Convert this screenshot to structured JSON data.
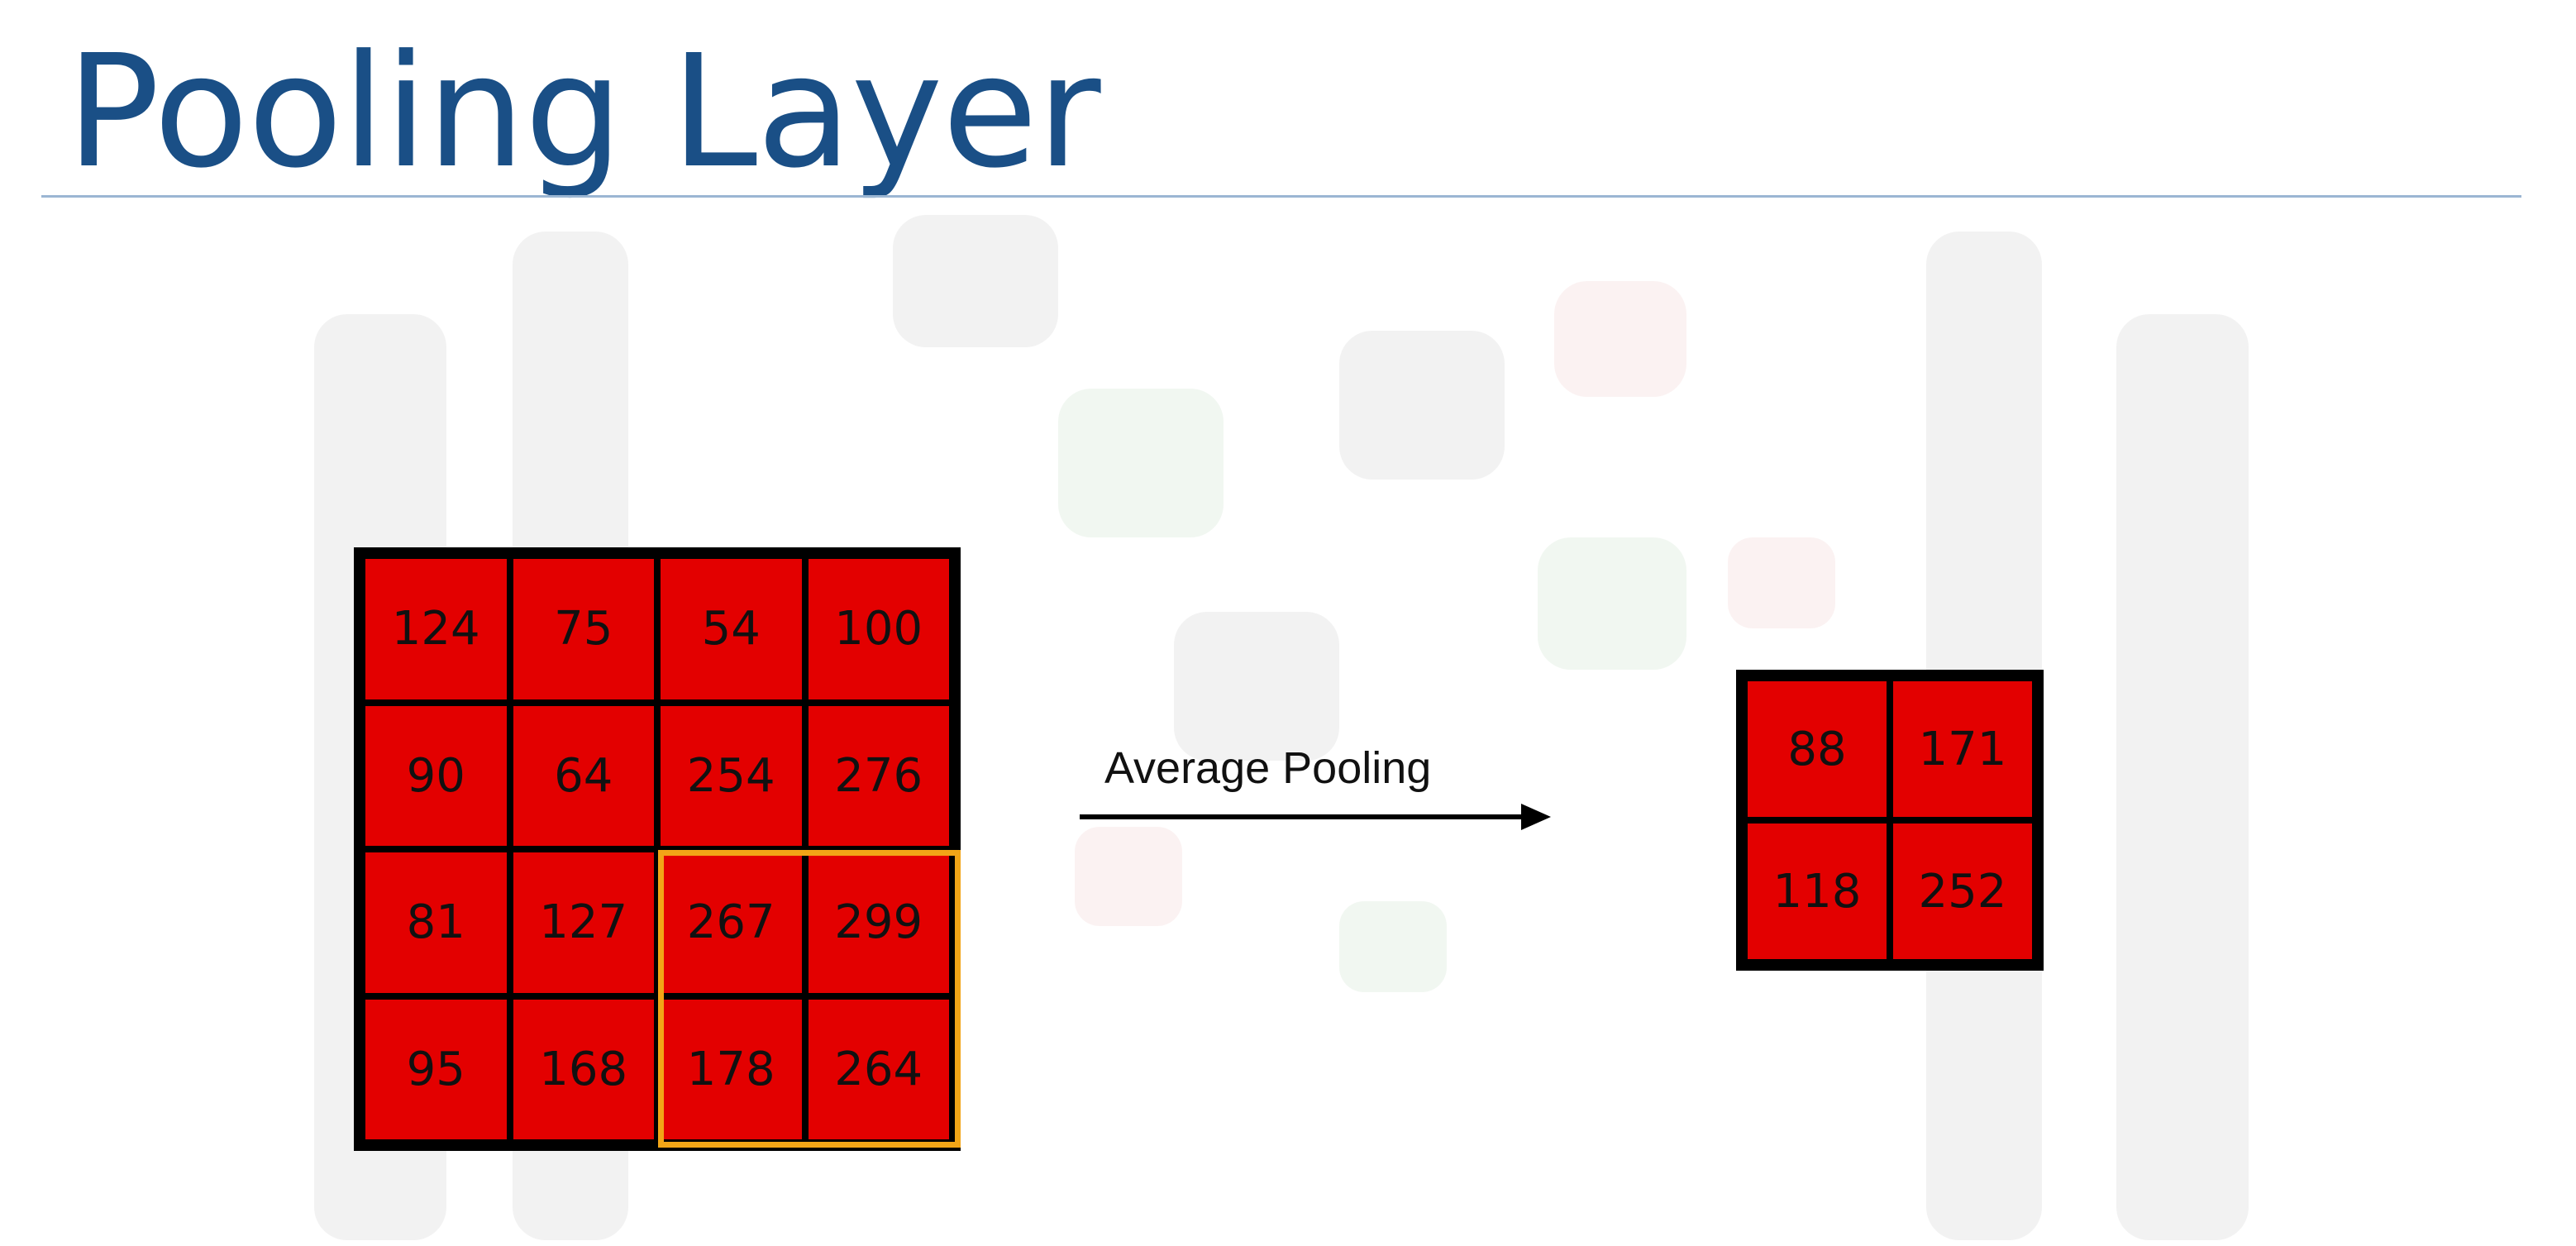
{
  "slide": {
    "title": "Pooling Layer",
    "operation_label": "Average Pooling"
  },
  "input_matrix": [
    [
      "124",
      "75",
      "54",
      "100"
    ],
    [
      "90",
      "64",
      "254",
      "276"
    ],
    [
      "81",
      "127",
      "267",
      "299"
    ],
    [
      "95",
      "168",
      "178",
      "264"
    ]
  ],
  "output_matrix": [
    [
      "88",
      "171"
    ],
    [
      "118",
      "252"
    ]
  ],
  "highlighted_window": {
    "rows": [
      2,
      3
    ],
    "cols": [
      2,
      3
    ]
  },
  "colors": {
    "title": "#1a4f86",
    "cell_fill": "#e30000",
    "grid_border": "#000000",
    "highlight": "#f2a517"
  }
}
